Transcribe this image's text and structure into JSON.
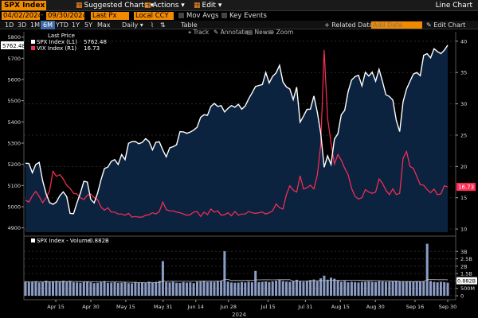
{
  "header": {
    "ticker": "SPX Index",
    "suggested_charts": "Suggested Charts",
    "actions": "Actions",
    "edit": "Edit",
    "chart_type": "Line Chart",
    "start_date": "04/02/2024",
    "end_date": "09/30/2024",
    "field": "Last Px",
    "currency": "Local CCY",
    "mov_avgs": "Mov Avgs",
    "key_events": "Key Events"
  },
  "tabs": {
    "items": [
      "1D",
      "3D",
      "1M",
      "6M",
      "YTD",
      "1Y",
      "5Y",
      "Max"
    ],
    "active": "6M",
    "frequency": "Daily",
    "table": "Table",
    "related_data": "+ Related Data",
    "add_data_placeholder": "Add Data",
    "edit_chart": "Edit Chart"
  },
  "toolbar": {
    "track": "Track",
    "annotate": "Annotate",
    "news": "News",
    "zoom": "Zoom"
  },
  "legend": {
    "title": "Last Price",
    "spx_label": "SPX Index (L1)",
    "spx_value": "5762.48",
    "vix_label": "VIX Index (R1)",
    "vix_value": "16.73",
    "volume_label": "SPX Index - Volume",
    "volume_value": "0.882B"
  },
  "badges": {
    "spx_last": "5762.48",
    "vix_last": "16.73",
    "volume_last": "0.882B"
  },
  "colors": {
    "spx_line": "#ffffff",
    "spx_fill": "#0c2340",
    "vix_line": "#ff2d55",
    "volume_bar": "#8c9ec7",
    "accent": "#f28a00"
  },
  "chart_data": [
    {
      "type": "area",
      "series": [
        {
          "name": "SPX Index (L1)",
          "axis": "left",
          "values": [
            5205,
            5204,
            5160,
            5199,
            5209,
            5123,
            5061,
            5020,
            5011,
            5022,
            5052,
            5070,
            5048,
            4968,
            4967,
            5018,
            5064,
            5120,
            5116,
            5035,
            5018,
            5064,
            5127,
            5180,
            5187,
            5214,
            5222,
            5199,
            5246,
            5222,
            5299,
            5307,
            5308,
            5297,
            5303,
            5321,
            5307,
            5268,
            5304,
            5306,
            5267,
            5235,
            5278,
            5283,
            5292,
            5354,
            5353,
            5346,
            5352,
            5361,
            5375,
            5421,
            5434,
            5431,
            5473,
            5487,
            5473,
            5477,
            5447,
            5464,
            5477,
            5469,
            5483,
            5460,
            5475,
            5509,
            5537,
            5567,
            5572,
            5576,
            5633,
            5584,
            5615,
            5631,
            5667,
            5588,
            5565,
            5555,
            5505,
            5564,
            5399,
            5427,
            5459,
            5460,
            5522,
            5446,
            5346,
            5186,
            5240,
            5199,
            5319,
            5344,
            5434,
            5455,
            5543,
            5597,
            5614,
            5620,
            5570,
            5634,
            5616,
            5635,
            5592,
            5648,
            5591,
            5528,
            5520,
            5503,
            5408,
            5354,
            5496,
            5555,
            5591,
            5626,
            5633,
            5618,
            5714,
            5722,
            5702,
            5745,
            5732,
            5722,
            5738,
            5762
          ]
        },
        {
          "name": "VIX Index (R1)",
          "axis": "right",
          "values": [
            14.6,
            14.3,
            15.3,
            16.0,
            15.2,
            14.2,
            15.0,
            16.1,
            19.2,
            18.4,
            18.7,
            18.0,
            17.0,
            16.5,
            15.7,
            15.6,
            15.0,
            14.7,
            15.4,
            15.6,
            15.0,
            14.7,
            13.5,
            13.0,
            13.4,
            12.7,
            12.7,
            12.4,
            12.4,
            12.2,
            12.5,
            11.9,
            12.0,
            11.9,
            11.9,
            12.2,
            12.3,
            12.6,
            12.4,
            12.8,
            14.3,
            13.1,
            12.9,
            12.9,
            12.7,
            12.6,
            12.4,
            12.2,
            12.3,
            12.7,
            12.8,
            12.0,
            12.7,
            12.3,
            13.2,
            12.7,
            12.9,
            12.2,
            12.3,
            12.6,
            12.1,
            12.8,
            12.2,
            12.4,
            12.4,
            12.8,
            12.6,
            12.5,
            12.6,
            12.7,
            12.4,
            12.6,
            12.9,
            14.0,
            13.4,
            13.2,
            15.5,
            16.9,
            16.2,
            15.9,
            18.5,
            16.4,
            16.6,
            17.0,
            16.4,
            18.6,
            23.4,
            38.6,
            27.7,
            23.8,
            20.4,
            21.9,
            21.0,
            19.7,
            18.7,
            16.5,
            15.2,
            14.8,
            15.0,
            16.3,
            15.9,
            15.7,
            15.9,
            18.0,
            17.3,
            16.2,
            15.5,
            16.4,
            15.5,
            15.7,
            21.3,
            22.4,
            20.0,
            19.7,
            18.4,
            17.1,
            17.0,
            16.3,
            15.8,
            16.4,
            15.5,
            15.6,
            16.9,
            16.73
          ]
        }
      ],
      "x_start": "2024-04-02",
      "x_end": "2024-09-30",
      "x_tick_labels": [
        "Apr 15",
        "Apr 30",
        "May 15",
        "May 31",
        "Jun 14",
        "Jun 28",
        "Jul 15",
        "Jul 31",
        "Aug 15",
        "Aug 30",
        "Sep 16",
        "Sep 30"
      ],
      "year_label": "2024",
      "left_axis": {
        "ticks": [
          4900,
          5000,
          5100,
          5200,
          5300,
          5400,
          5500,
          5600,
          5700,
          5800
        ],
        "ylim": [
          4880,
          5810
        ]
      },
      "right_axis": {
        "ticks": [
          10,
          15,
          20,
          25,
          30,
          35,
          40
        ],
        "ylim": [
          9.5,
          41
        ]
      },
      "grid": true,
      "legend_position": "top-left"
    },
    {
      "type": "bar",
      "series": [
        {
          "name": "SPX Index - Volume",
          "unit": "B",
          "values": [
            0.96,
            0.92,
            0.93,
            0.98,
            0.9,
            0.94,
            1.02,
            0.95,
            0.94,
            0.99,
            0.97,
            1.02,
            0.98,
            1.01,
            0.91,
            0.9,
            0.87,
            0.92,
            0.95,
            0.91,
            0.85,
            0.88,
            0.92,
            0.99,
            0.87,
            0.89,
            0.91,
            0.86,
            0.88,
            0.92,
            0.85,
            0.84,
            0.93,
            0.88,
            0.9,
            0.86,
            0.95,
            0.88,
            0.93,
            1.0,
            2.35,
            0.93,
            0.9,
            0.94,
            0.88,
            0.86,
            0.92,
            0.89,
            0.91,
            0.85,
            0.94,
            0.96,
            1.02,
            0.94,
            0.96,
            0.95,
            0.98,
            1.0,
            3.02,
            0.95,
            0.9,
            0.88,
            0.89,
            0.93,
            0.9,
            0.95,
            0.91,
            1.68,
            0.92,
            0.94,
            0.97,
            0.93,
            0.97,
            1.01,
            1.08,
            0.99,
            0.96,
            0.94,
            0.99,
            1.08,
            0.97,
            0.95,
            1.0,
            1.06,
            1.1,
            0.99,
            1.18,
            1.36,
            1.09,
            1.22,
            1.15,
            1.03,
            0.96,
            1.0,
            0.91,
            0.94,
            0.92,
            0.9,
            0.94,
            0.96,
            0.98,
            0.95,
            0.93,
            0.99,
            0.97,
            0.95,
            0.96,
            0.99,
            1.02,
            0.98,
            0.93,
            0.97,
            0.96,
            0.95,
            0.99,
            0.94,
            0.97,
            3.52,
            0.99,
            0.93,
            0.91,
            0.95,
            0.92,
            0.882
          ]
        }
      ],
      "y_ticks": [
        "0",
        "500M",
        "1B",
        "1.5B",
        "2B",
        "2.5B",
        "3B"
      ],
      "ylim": [
        0,
        3.5
      ]
    }
  ]
}
